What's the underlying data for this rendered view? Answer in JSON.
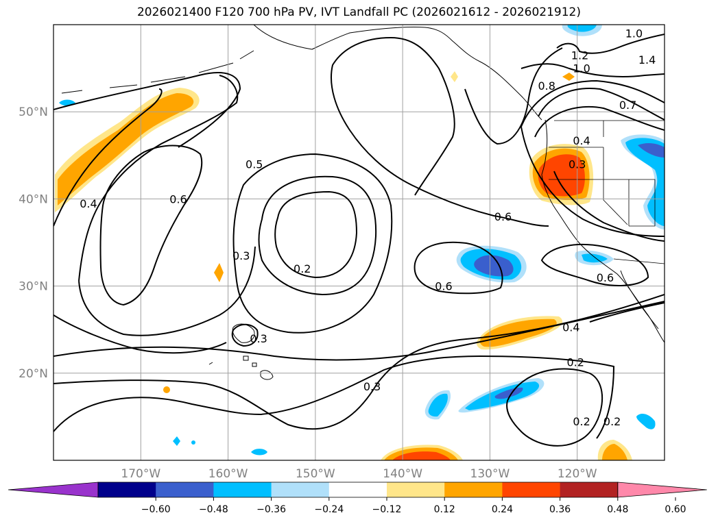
{
  "chart_data": {
    "type": "map",
    "title": "2026021400 F120 700 hPa PV, IVT Landfall PC (2026021612 - 2026021912)",
    "map": {
      "lon_range": [
        -180,
        -110
      ],
      "lat_range": [
        10,
        60
      ],
      "lon_ticks": [
        {
          "value": -170,
          "label": "170°W"
        },
        {
          "value": -160,
          "label": "160°W"
        },
        {
          "value": -150,
          "label": "150°W"
        },
        {
          "value": -140,
          "label": "140°W"
        },
        {
          "value": -130,
          "label": "130°W"
        },
        {
          "value": -120,
          "label": "120°W"
        }
      ],
      "lat_ticks": [
        {
          "value": 20,
          "label": "20°N"
        },
        {
          "value": 30,
          "label": "30°N"
        },
        {
          "value": 40,
          "label": "40°N"
        },
        {
          "value": 50,
          "label": "50°N"
        }
      ],
      "grid": true
    },
    "colorbar": {
      "extend": "both",
      "ticks": [
        "−0.60",
        "−0.48",
        "−0.36",
        "−0.24",
        "−0.12",
        "0.12",
        "0.24",
        "0.36",
        "0.48",
        "0.60"
      ],
      "colors": [
        "#9933cc",
        "#00008b",
        "#3a5fcd",
        "#00bfff",
        "#b0e0fa",
        "#ffffff",
        "#ffe68a",
        "#ffa500",
        "#ff4500",
        "#b22222",
        "#ff88aa"
      ]
    },
    "contour_labels": [
      {
        "lon": -176,
        "lat": 39.5,
        "text": "0.4"
      },
      {
        "lon": -165.7,
        "lat": 40,
        "text": "0.6"
      },
      {
        "lon": -157,
        "lat": 44,
        "text": "0.5"
      },
      {
        "lon": -158.5,
        "lat": 33.5,
        "text": "0.3"
      },
      {
        "lon": -151.5,
        "lat": 32,
        "text": "0.2"
      },
      {
        "lon": -156.5,
        "lat": 24,
        "text": "0.3"
      },
      {
        "lon": -143.5,
        "lat": 18.5,
        "text": "0.3"
      },
      {
        "lon": -135.3,
        "lat": 30,
        "text": "0.6"
      },
      {
        "lon": -128.5,
        "lat": 38,
        "text": "0.6"
      },
      {
        "lon": -123.5,
        "lat": 53,
        "text": "0.8"
      },
      {
        "lon": -120.7,
        "lat": 25.3,
        "text": "0.4"
      },
      {
        "lon": -120.2,
        "lat": 21.3,
        "text": "0.2"
      },
      {
        "lon": -119.5,
        "lat": 46.7,
        "text": "0.4"
      },
      {
        "lon": -119.7,
        "lat": 56.5,
        "text": "1.2"
      },
      {
        "lon": -119.5,
        "lat": 55,
        "text": "1.0"
      },
      {
        "lon": -113.5,
        "lat": 59,
        "text": "1.0"
      },
      {
        "lon": -112,
        "lat": 56,
        "text": "1.4"
      },
      {
        "lon": -114.2,
        "lat": 50.8,
        "text": "0.7"
      },
      {
        "lon": -120,
        "lat": 44,
        "text": "0.3"
      },
      {
        "lon": -116.8,
        "lat": 31,
        "text": "0.6"
      },
      {
        "lon": -119.5,
        "lat": 14.5,
        "text": "0.2"
      },
      {
        "lon": -116,
        "lat": 14.5,
        "text": "0.2"
      }
    ],
    "shaded_features": [
      {
        "name": "north-pacific-positive-band",
        "sign": "positive",
        "value": 0.3
      },
      {
        "name": "pnw-california-positive-core",
        "sign": "positive",
        "value": 0.4
      },
      {
        "name": "subtropical-positive-band",
        "sign": "positive",
        "value": 0.3
      },
      {
        "name": "southern-positive-core",
        "sign": "positive",
        "value": 0.4
      },
      {
        "name": "central-negative-core",
        "sign": "negative",
        "value": -0.45
      },
      {
        "name": "southern-negative-core",
        "sign": "negative",
        "value": -0.45
      },
      {
        "name": "intermountain-negative",
        "sign": "negative",
        "value": -0.4
      }
    ]
  }
}
